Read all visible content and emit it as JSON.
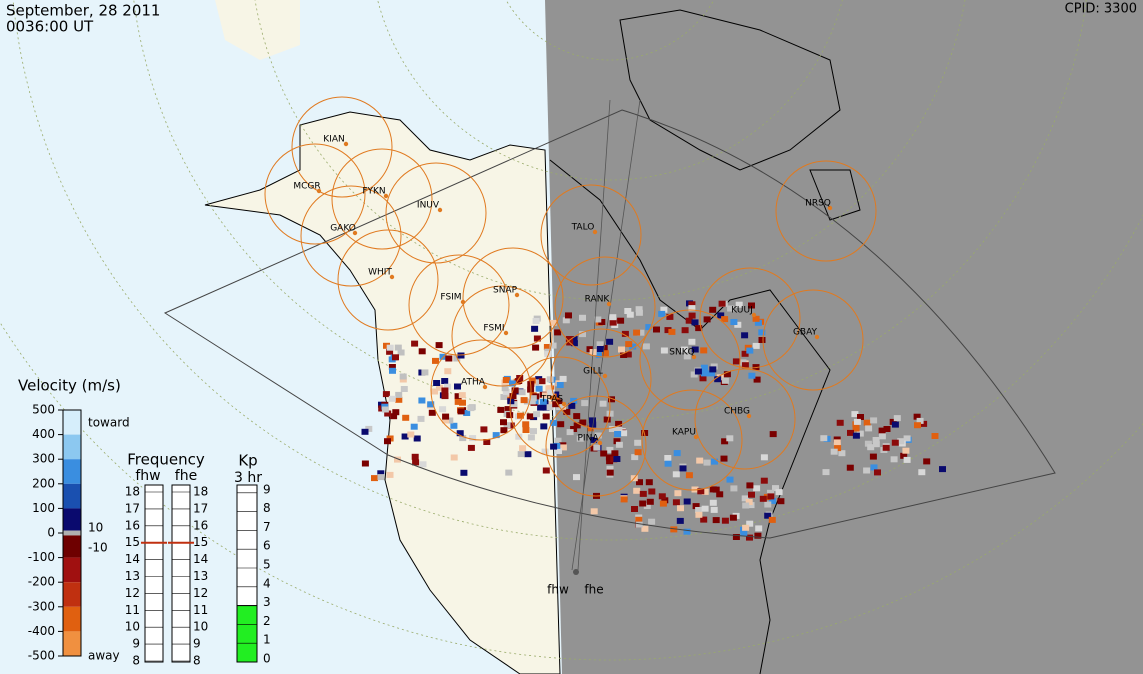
{
  "header": {
    "date": "September, 28 2011",
    "time": "0036:00 UT",
    "cpid": "CPID:  3300"
  },
  "stations": [
    "KIAN",
    "MCGR",
    "FYKN",
    "INUV",
    "GAKO",
    "WHIT",
    "FSIM",
    "SNAP",
    "FSMI",
    "ATHA",
    "TPAS",
    "GILL",
    "PINA",
    "RANK",
    "TALO",
    "SNKQ",
    "KUUJ",
    "GBAY",
    "NRSQ",
    "KAPU",
    "CHBG"
  ],
  "radars": [
    "fhw",
    "fhe"
  ],
  "velocity": {
    "title": "Velocity (m/s)",
    "ticks": [
      500,
      400,
      300,
      200,
      100,
      0,
      -100,
      -200,
      -300,
      -400,
      -500
    ],
    "toward": "toward",
    "away": "away",
    "zero_band": [
      10,
      -10
    ]
  },
  "frequency": {
    "title": "Frequency",
    "columns": [
      "fhw",
      "fhe"
    ],
    "ticks": [
      18,
      17,
      16,
      15,
      14,
      13,
      12,
      11,
      10,
      9,
      8
    ],
    "values": [
      15,
      15
    ]
  },
  "kp": {
    "title": "Kp",
    "period": "3 hr",
    "ticks": [
      9,
      8,
      7,
      6,
      5,
      4,
      3,
      2,
      1,
      0
    ],
    "value": 3
  }
}
